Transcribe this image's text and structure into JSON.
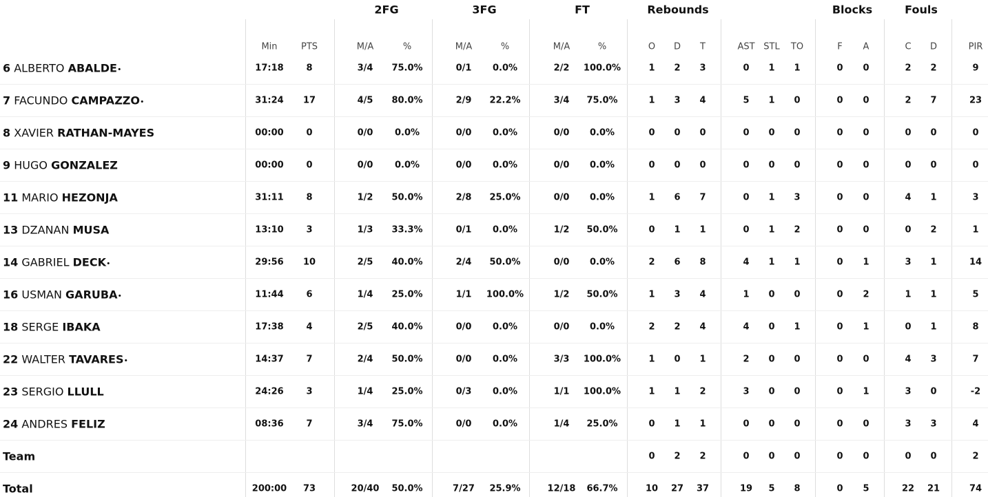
{
  "table": {
    "groups": [
      "2FG",
      "3FG",
      "FT",
      "Rebounds",
      "Blocks",
      "Fouls"
    ],
    "columns": [
      "Min",
      "PTS",
      "M/A",
      "%",
      "M/A",
      "%",
      "M/A",
      "%",
      "O",
      "D",
      "T",
      "AST",
      "STL",
      "TO",
      "F",
      "A",
      "C",
      "D",
      "PIR"
    ],
    "rows": [
      {
        "number": "6",
        "first": "ALBERTO",
        "last": "ABALDE",
        "mark": "•",
        "stats": [
          "17:18",
          "8",
          "3/4",
          "75.0%",
          "0/1",
          "0.0%",
          "2/2",
          "100.0%",
          "1",
          "2",
          "3",
          "0",
          "1",
          "1",
          "0",
          "0",
          "2",
          "2",
          "9"
        ]
      },
      {
        "number": "7",
        "first": "FACUNDO",
        "last": "CAMPAZZO",
        "mark": "•",
        "stats": [
          "31:24",
          "17",
          "4/5",
          "80.0%",
          "2/9",
          "22.2%",
          "3/4",
          "75.0%",
          "1",
          "3",
          "4",
          "5",
          "1",
          "0",
          "0",
          "0",
          "2",
          "7",
          "23"
        ]
      },
      {
        "number": "8",
        "first": "XAVIER",
        "last": "RATHAN-MAYES",
        "stats": [
          "00:00",
          "0",
          "0/0",
          "0.0%",
          "0/0",
          "0.0%",
          "0/0",
          "0.0%",
          "0",
          "0",
          "0",
          "0",
          "0",
          "0",
          "0",
          "0",
          "0",
          "0",
          "0"
        ]
      },
      {
        "number": "9",
        "first": "HUGO",
        "last": "GONZALEZ",
        "stats": [
          "00:00",
          "0",
          "0/0",
          "0.0%",
          "0/0",
          "0.0%",
          "0/0",
          "0.0%",
          "0",
          "0",
          "0",
          "0",
          "0",
          "0",
          "0",
          "0",
          "0",
          "0",
          "0"
        ]
      },
      {
        "number": "11",
        "first": "MARIO",
        "last": "HEZONJA",
        "stats": [
          "31:11",
          "8",
          "1/2",
          "50.0%",
          "2/8",
          "25.0%",
          "0/0",
          "0.0%",
          "1",
          "6",
          "7",
          "0",
          "1",
          "3",
          "0",
          "0",
          "4",
          "1",
          "3"
        ]
      },
      {
        "number": "13",
        "first": "DZANAN",
        "last": "MUSA",
        "stats": [
          "13:10",
          "3",
          "1/3",
          "33.3%",
          "0/1",
          "0.0%",
          "1/2",
          "50.0%",
          "0",
          "1",
          "1",
          "0",
          "1",
          "2",
          "0",
          "0",
          "0",
          "2",
          "1"
        ]
      },
      {
        "number": "14",
        "first": "GABRIEL",
        "last": "DECK",
        "mark": "•",
        "stats": [
          "29:56",
          "10",
          "2/5",
          "40.0%",
          "2/4",
          "50.0%",
          "0/0",
          "0.0%",
          "2",
          "6",
          "8",
          "4",
          "1",
          "1",
          "0",
          "1",
          "3",
          "1",
          "14"
        ]
      },
      {
        "number": "16",
        "first": "USMAN",
        "last": "GARUBA",
        "mark": "•",
        "stats": [
          "11:44",
          "6",
          "1/4",
          "25.0%",
          "1/1",
          "100.0%",
          "1/2",
          "50.0%",
          "1",
          "3",
          "4",
          "1",
          "0",
          "0",
          "0",
          "2",
          "1",
          "1",
          "5"
        ]
      },
      {
        "number": "18",
        "first": "SERGE",
        "last": "IBAKA",
        "stats": [
          "17:38",
          "4",
          "2/5",
          "40.0%",
          "0/0",
          "0.0%",
          "0/0",
          "0.0%",
          "2",
          "2",
          "4",
          "4",
          "0",
          "1",
          "0",
          "1",
          "0",
          "1",
          "8"
        ]
      },
      {
        "number": "22",
        "first": "WALTER",
        "last": "TAVARES",
        "mark": "•",
        "stats": [
          "14:37",
          "7",
          "2/4",
          "50.0%",
          "0/0",
          "0.0%",
          "3/3",
          "100.0%",
          "1",
          "0",
          "1",
          "2",
          "0",
          "0",
          "0",
          "0",
          "4",
          "3",
          "7"
        ]
      },
      {
        "number": "23",
        "first": "SERGIO",
        "last": "LLULL",
        "stats": [
          "24:26",
          "3",
          "1/4",
          "25.0%",
          "0/3",
          "0.0%",
          "1/1",
          "100.0%",
          "1",
          "1",
          "2",
          "3",
          "0",
          "0",
          "0",
          "1",
          "3",
          "0",
          "-2"
        ]
      },
      {
        "number": "24",
        "first": "ANDRES",
        "last": "FELIZ",
        "stats": [
          "08:36",
          "7",
          "3/4",
          "75.0%",
          "0/0",
          "0.0%",
          "1/4",
          "25.0%",
          "0",
          "1",
          "1",
          "0",
          "0",
          "0",
          "0",
          "0",
          "3",
          "3",
          "4"
        ]
      },
      {
        "label": "Team",
        "stats": [
          null,
          null,
          null,
          null,
          null,
          null,
          null,
          null,
          "0",
          "2",
          "2",
          "0",
          "0",
          "0",
          "0",
          "0",
          "0",
          "0",
          "2"
        ]
      },
      {
        "label": "Total",
        "stats": [
          "200:00",
          "73",
          "20/40",
          "50.0%",
          "7/27",
          "25.9%",
          "12/18",
          "66.7%",
          "10",
          "27",
          "37",
          "19",
          "5",
          "8",
          "0",
          "5",
          "22",
          "21",
          "74"
        ]
      }
    ]
  }
}
